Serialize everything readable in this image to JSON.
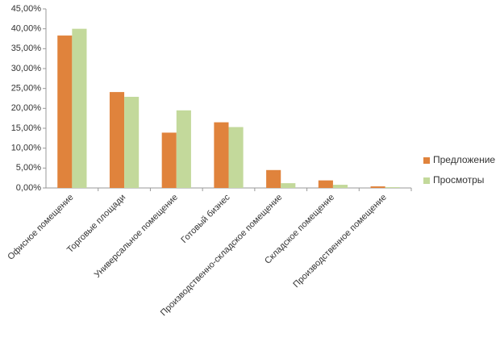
{
  "chart_data": {
    "type": "bar",
    "categories": [
      "Офисное помещение",
      "Торговые площади",
      "Универсальное помещение",
      "Готовый бизнес",
      "Производственно-складское помещение",
      "Складское помещение",
      "Производственное помещение"
    ],
    "series": [
      {
        "name": "Предложение",
        "color": "#e0833c",
        "values": [
          38.3,
          24.1,
          13.9,
          16.5,
          4.5,
          1.9,
          0.4
        ]
      },
      {
        "name": "Просмотры",
        "color": "#c3d99b",
        "values": [
          40.0,
          22.9,
          19.5,
          15.3,
          1.2,
          0.8,
          0.2
        ]
      }
    ],
    "ylim": [
      0,
      45
    ],
    "yticks": [
      {
        "value": 0,
        "label": "0,00%"
      },
      {
        "value": 5,
        "label": "5,00%"
      },
      {
        "value": 10,
        "label": "10,00%"
      },
      {
        "value": 15,
        "label": "15,00%"
      },
      {
        "value": 20,
        "label": "20,00%"
      },
      {
        "value": 25,
        "label": "25,00%"
      },
      {
        "value": 30,
        "label": "30,00%"
      },
      {
        "value": 35,
        "label": "35,00%"
      },
      {
        "value": 40,
        "label": "40,00%"
      },
      {
        "value": 45,
        "label": "45,00%"
      }
    ],
    "legend": "right"
  }
}
